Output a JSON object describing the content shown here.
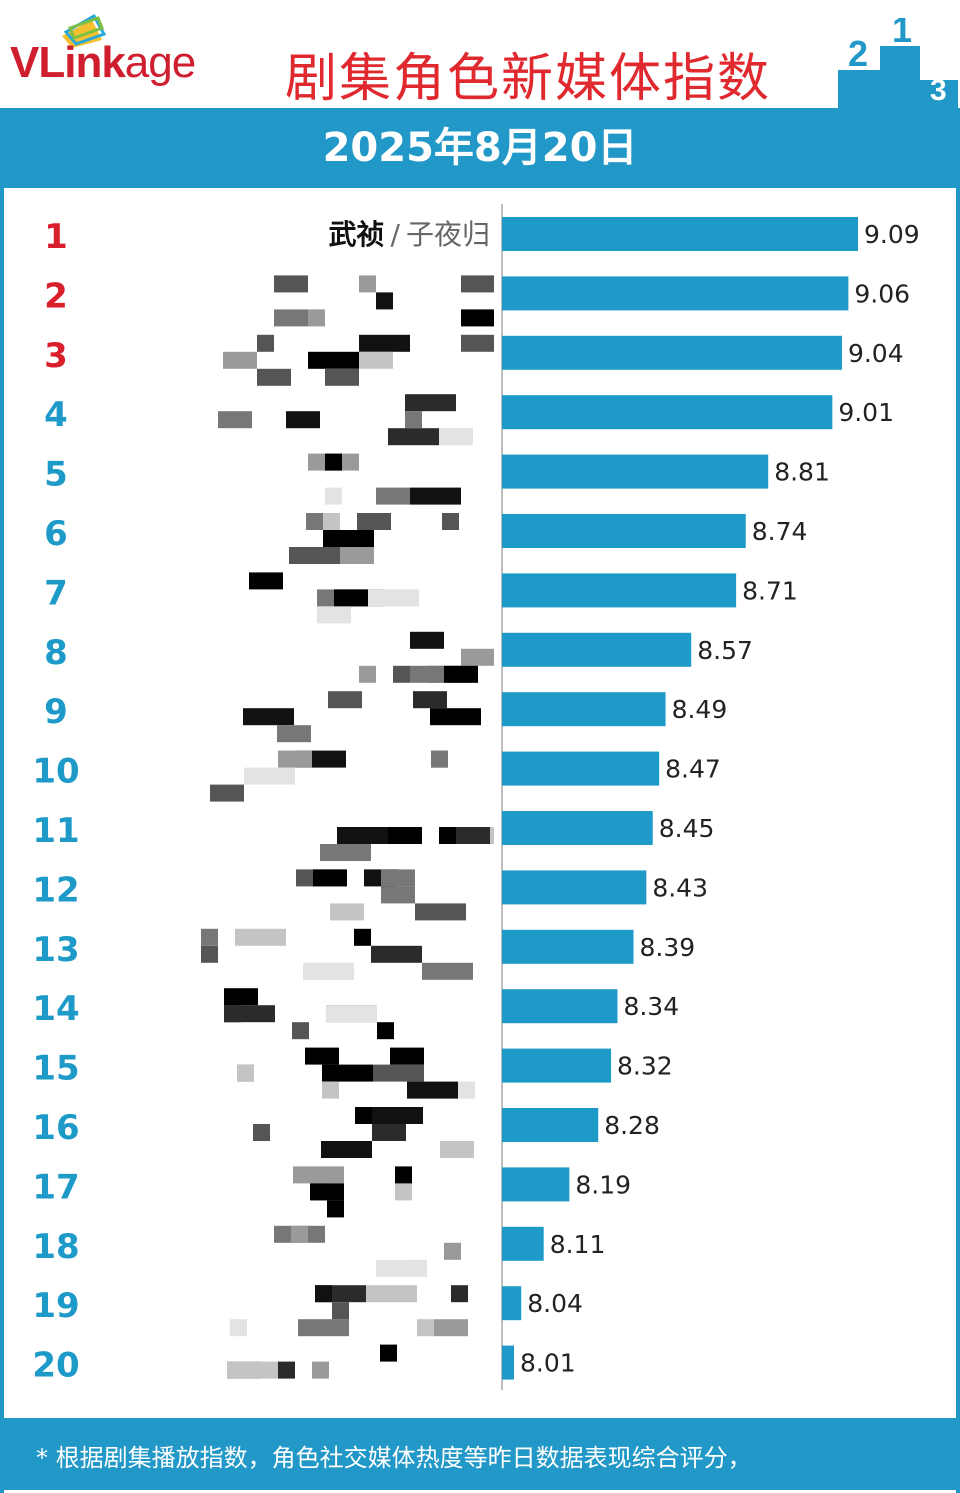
{
  "header": {
    "brand_main": "VLink",
    "brand_tail": "age",
    "title": "剧集角色新媒体指数",
    "podium_numbers": [
      "2",
      "1",
      "3"
    ]
  },
  "banner": {
    "date": "2025年8月20日"
  },
  "chart_data": {
    "type": "bar",
    "orientation": "horizontal",
    "ranks": [
      "1",
      "2",
      "3",
      "4",
      "5",
      "6",
      "7",
      "8",
      "9",
      "10",
      "11",
      "12",
      "13",
      "14",
      "15",
      "16",
      "17",
      "18",
      "19",
      "20"
    ],
    "first_label": {
      "drama": "武祯",
      "separator": "/",
      "role": "子夜归"
    },
    "values": [
      9.09,
      9.06,
      9.04,
      9.01,
      8.81,
      8.74,
      8.71,
      8.57,
      8.49,
      8.47,
      8.45,
      8.43,
      8.39,
      8.34,
      8.32,
      8.28,
      8.19,
      8.11,
      8.04,
      8.01
    ],
    "value_labels": [
      "9.09",
      "9.06",
      "9.04",
      "9.01",
      "8.81",
      "8.74",
      "8.71",
      "8.57",
      "8.49",
      "8.47",
      "8.45",
      "8.43",
      "8.39",
      "8.34",
      "8.32",
      "8.28",
      "8.19",
      "8.11",
      "8.04",
      "8.01"
    ],
    "labels_obscured": true,
    "colors": {
      "bar": "#1e9ac8",
      "top3_rank": "#d91f2c",
      "rank": "#1e9ac8",
      "value": "#222222"
    }
  },
  "footer": {
    "note": "* 根据剧集播放指数，角色社交媒体热度等昨日数据表现综合评分，"
  }
}
